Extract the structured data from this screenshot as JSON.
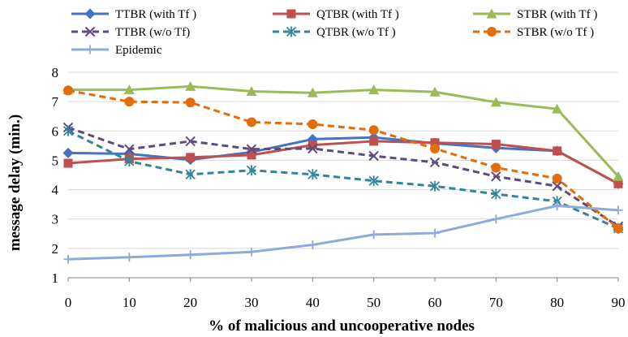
{
  "chart_data": {
    "type": "line",
    "title": "",
    "xlabel": "% of malicious and uncooperative nodes",
    "ylabel": "message delay (min.)",
    "x": [
      0,
      10,
      20,
      30,
      40,
      50,
      60,
      70,
      80,
      90
    ],
    "ylim": [
      1,
      8
    ],
    "yticks": [
      1,
      2,
      3,
      4,
      5,
      6,
      7,
      8
    ],
    "grid": "horizontal",
    "legend_position": "top",
    "series": [
      {
        "name": "TTBR (with Tf )",
        "color": "#4472c4",
        "dash": "solid",
        "marker": "diamond",
        "values": [
          5.25,
          5.22,
          5.02,
          5.28,
          5.72,
          5.78,
          5.58,
          5.42,
          5.32,
          4.2
        ]
      },
      {
        "name": "QTBR (with Tf )",
        "color": "#c0504d",
        "dash": "solid",
        "marker": "square",
        "values": [
          4.9,
          5.05,
          5.1,
          5.18,
          5.52,
          5.65,
          5.6,
          5.55,
          5.32,
          4.2
        ]
      },
      {
        "name": "STBR (with Tf )",
        "color": "#9bbb59",
        "dash": "solid",
        "marker": "triangle",
        "values": [
          7.4,
          7.4,
          7.52,
          7.35,
          7.3,
          7.4,
          7.33,
          6.98,
          6.75,
          4.45
        ]
      },
      {
        "name": "TTBR (w/o Tf)",
        "color": "#604a7b",
        "dash": "dashed",
        "marker": "x",
        "values": [
          6.12,
          5.38,
          5.65,
          5.38,
          5.4,
          5.15,
          4.93,
          4.45,
          4.12,
          2.75
        ]
      },
      {
        "name": "QTBR (w/o Tf )",
        "color": "#31859c",
        "dash": "dashed",
        "marker": "asterisk",
        "values": [
          6.0,
          4.97,
          4.52,
          4.66,
          4.52,
          4.3,
          4.12,
          3.85,
          3.6,
          2.68
        ]
      },
      {
        "name": "STBR (w/o Tf )",
        "color": "#e46c0a",
        "dash": "dashed",
        "marker": "circle",
        "values": [
          7.38,
          7.0,
          6.97,
          6.3,
          6.23,
          6.03,
          5.4,
          4.75,
          4.38,
          2.68
        ]
      },
      {
        "name": "Epidemic",
        "color": "#8eaadb",
        "dash": "solid",
        "marker": "plus",
        "values": [
          1.63,
          1.7,
          1.78,
          1.88,
          2.12,
          2.47,
          2.52,
          3.0,
          3.45,
          3.3
        ]
      }
    ]
  }
}
